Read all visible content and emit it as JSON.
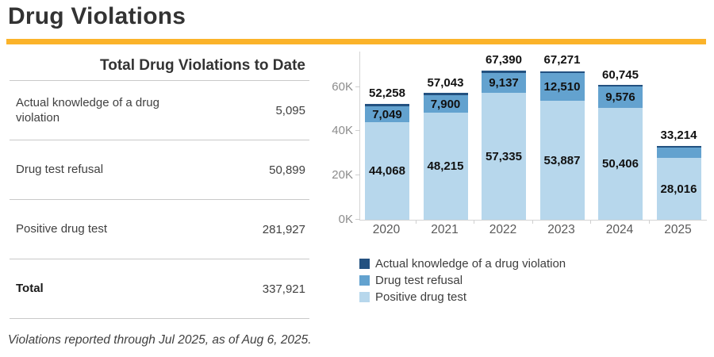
{
  "page": {
    "title": "Drug Violations",
    "accent_color": "#FBB32A",
    "footnote": "Violations reported through Jul 2025, as of Aug 6, 2025."
  },
  "table": {
    "title": "Total Drug Violations to Date",
    "rows": [
      {
        "label": "Actual knowledge of a drug violation",
        "value": "5,095",
        "bold": false
      },
      {
        "label": "Drug test refusal",
        "value": "50,899",
        "bold": false
      },
      {
        "label": "Positive drug test",
        "value": "281,927",
        "bold": false
      },
      {
        "label": "Total",
        "value": "337,921",
        "bold": true
      }
    ]
  },
  "chart_data": {
    "type": "bar",
    "stacked": true,
    "grid": false,
    "categories": [
      "2020",
      "2021",
      "2022",
      "2023",
      "2024",
      "2025"
    ],
    "series": [
      {
        "name": "Positive drug test",
        "color": "#B7D7EC",
        "values": [
          44068,
          48215,
          57335,
          53887,
          50406,
          28016
        ],
        "labels": [
          "44,068",
          "48,215",
          "57,335",
          "53,887",
          "50,406",
          "28,016"
        ]
      },
      {
        "name": "Drug test refusal",
        "color": "#63A2CF",
        "values": [
          7049,
          7900,
          9137,
          12510,
          9576,
          4727
        ],
        "labels": [
          "7,049",
          "7,900",
          "9,137",
          "12,510",
          "9,576",
          ""
        ]
      },
      {
        "name": "Actual knowledge of a drug violation",
        "color": "#235180",
        "values": [
          1141,
          928,
          918,
          874,
          763,
          471
        ],
        "labels": [
          "",
          "",
          "",
          "",
          "",
          ""
        ]
      }
    ],
    "totals": [
      52258,
      57043,
      67390,
      67271,
      60745,
      33214
    ],
    "total_labels": [
      "52,258",
      "57,043",
      "67,390",
      "67,271",
      "60,745",
      "33,214"
    ],
    "ylabel": "",
    "xlabel": "",
    "ylim": [
      0,
      76000
    ],
    "y_ticks": [
      {
        "value": 0,
        "label": "0K"
      },
      {
        "value": 20000,
        "label": "20K"
      },
      {
        "value": 40000,
        "label": "40K"
      },
      {
        "value": 60000,
        "label": "60K"
      }
    ],
    "legend_position": "bottom-left",
    "legend": [
      {
        "label": "Actual knowledge of a drug violation",
        "color": "#235180"
      },
      {
        "label": "Drug test refusal",
        "color": "#63A2CF"
      },
      {
        "label": "Positive drug test",
        "color": "#B7D7EC"
      }
    ]
  }
}
